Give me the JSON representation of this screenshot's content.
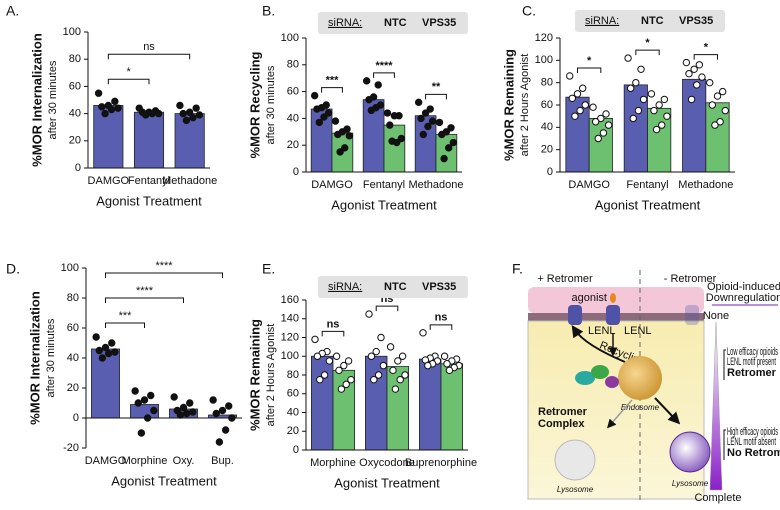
{
  "chart_data": [
    {
      "type": "bar",
      "panel": "A.",
      "y_label": "%MOR Internalization",
      "y_sublabel": "after 30 minutes",
      "x_label": "Agonist Treatment",
      "categories": [
        "DAMGO",
        "Fentanyl",
        "Methadone"
      ],
      "series": [
        {
          "color": "#5a5eb0",
          "values": [
            46,
            41,
            40
          ],
          "points": [
            [
              55,
              49,
              46,
              45,
              44,
              43,
              40
            ],
            [
              44,
              42,
              41,
              41,
              40,
              40,
              39
            ],
            [
              46,
              44,
              41,
              40,
              39,
              37,
              35
            ]
          ]
        }
      ],
      "point_style": "filled",
      "ylim": [
        0,
        100
      ],
      "yticks": [
        0,
        20,
        40,
        60,
        80,
        100
      ],
      "significance": [
        {
          "label": "*",
          "between": [
            "DAMGO",
            "Fentanyl"
          ]
        },
        {
          "label": "ns",
          "between": [
            "DAMGO",
            "Methadone"
          ]
        }
      ]
    },
    {
      "type": "bar",
      "panel": "B.",
      "y_label": "%MOR Recycling",
      "y_sublabel": "after 30 minutes",
      "x_label": "Agonist Treatment",
      "legend_title": "siRNA:",
      "categories": [
        "DAMGO",
        "Fentanyl",
        "Methadone"
      ],
      "series": [
        {
          "name": "NTC",
          "color": "#5a5eb0",
          "values": [
            47,
            54,
            42
          ],
          "points": [
            [
              57,
              50,
              48,
              47,
              44,
              41,
              37
            ],
            [
              68,
              65,
              56,
              54,
              50,
              48,
              46
            ],
            [
              52,
              47,
              44,
              40,
              38,
              34,
              28
            ]
          ]
        },
        {
          "name": "VPS35",
          "color": "#6cc070",
          "values": [
            29,
            35,
            28
          ],
          "points": [
            [
              38,
              32,
              30,
              28,
              27,
              18,
              15
            ],
            [
              44,
              42,
              42,
              35,
              25,
              22,
              23
            ],
            [
              37,
              33,
              30,
              28,
              22,
              18,
              10
            ]
          ]
        }
      ],
      "point_style": "filled",
      "ylim": [
        0,
        100
      ],
      "yticks": [
        0,
        20,
        40,
        60,
        80,
        100
      ],
      "significance": [
        "***",
        "****",
        "**"
      ]
    },
    {
      "type": "bar",
      "panel": "C.",
      "y_label": "%MOR Remaining",
      "y_sublabel": "after 2 Hours Agonist",
      "x_label": "Agonist Treatment",
      "legend_title": "siRNA:",
      "categories": [
        "DAMGO",
        "Fentanyl",
        "Methadone"
      ],
      "series": [
        {
          "name": "NTC",
          "color": "#5a5eb0",
          "values": [
            67,
            78,
            83
          ],
          "points": [
            [
              86,
              75,
              70,
              66,
              60,
              55,
              50
            ],
            [
              102,
              92,
              80,
              75,
              65,
              55,
              48
            ],
            [
              98,
              96,
              92,
              88,
              85,
              78,
              65
            ]
          ]
        },
        {
          "name": "VPS35",
          "color": "#6cc070",
          "values": [
            48,
            57,
            62
          ],
          "points": [
            [
              58,
              52,
              48,
              45,
              42,
              35,
              30
            ],
            [
              70,
              65,
              60,
              55,
              50,
              42,
              38
            ],
            [
              80,
              72,
              68,
              60,
              55,
              45,
              42
            ]
          ]
        }
      ],
      "point_style": "open",
      "ylim": [
        0,
        120
      ],
      "yticks": [
        0,
        20,
        40,
        60,
        80,
        100,
        120
      ],
      "significance": [
        "*",
        "*",
        "*"
      ]
    },
    {
      "type": "bar",
      "panel": "D.",
      "y_label": "%MOR Internalization",
      "y_sublabel": "after 30 minutes",
      "x_label": "Agonist Treatment",
      "categories": [
        "DAMGO",
        "Morphine",
        "Oxy.",
        "Bup."
      ],
      "series": [
        {
          "color": "#5a5eb0",
          "values": [
            46,
            9,
            6,
            2
          ],
          "points": [
            [
              54,
              50,
              47,
              45,
              44,
              43,
              40
            ],
            [
              18,
              15,
              12,
              10,
              5,
              0,
              -10
            ],
            [
              14,
              10,
              7,
              5,
              4,
              3,
              2
            ],
            [
              12,
              8,
              5,
              3,
              0,
              -8,
              -16
            ]
          ]
        }
      ],
      "point_style": "filled",
      "ylim": [
        -20,
        100
      ],
      "yticks": [
        -20,
        0,
        20,
        40,
        60,
        80,
        100
      ],
      "significance": [
        {
          "label": "***",
          "between": [
            "DAMGO",
            "Morphine"
          ]
        },
        {
          "label": "****",
          "between": [
            "DAMGO",
            "Oxy."
          ]
        },
        {
          "label": "****",
          "between": [
            "DAMGO",
            "Bup."
          ]
        }
      ]
    },
    {
      "type": "bar",
      "panel": "E.",
      "y_label": "%MOR Remaining",
      "y_sublabel": "after 2 Hours Agonist",
      "x_label": "Agonist Treatment",
      "legend_title": "siRNA:",
      "categories": [
        "Morphine",
        "Oxycodone",
        "Buprenorphine"
      ],
      "series": [
        {
          "name": "NTC",
          "color": "#5a5eb0",
          "values": [
            100,
            100,
            97
          ],
          "points": [
            [
              118,
              105,
              103,
              100,
              95,
              80,
              75
            ],
            [
              145,
              120,
              105,
              100,
              90,
              80,
              75
            ],
            [
              125,
              100,
              98,
              96,
              95,
              92,
              90
            ]
          ]
        },
        {
          "name": "VPS35",
          "color": "#6cc070",
          "values": [
            85,
            89,
            92
          ],
          "points": [
            [
              100,
              95,
              90,
              85,
              75,
              70,
              65
            ],
            [
              110,
              100,
              95,
              85,
              80,
              75,
              65
            ],
            [
              100,
              97,
              95,
              92,
              90,
              88,
              85
            ]
          ]
        }
      ],
      "point_style": "open",
      "ylim": [
        0,
        160
      ],
      "yticks": [
        0,
        20,
        40,
        60,
        80,
        100,
        120,
        140,
        160
      ],
      "significance": [
        "ns",
        "ns",
        "ns"
      ]
    }
  ],
  "diagram": {
    "panel": "F.",
    "left": "+ Retromer",
    "right": "- Retromer",
    "agonist": "agonist",
    "motif_left": "LENL",
    "motif_right": "LENL",
    "recycling": "Recycling",
    "endosome": "Endosome",
    "complex": [
      "Retromer",
      "Complex"
    ],
    "lysosome_left": "Lysosome",
    "lysosome_right": "Lysosome",
    "scale_title": [
      "Opioid-induced",
      "Downregulation"
    ],
    "scale_top": "None",
    "scale_bottom": "Complete",
    "low": [
      "Low efficacy opioids",
      "LENL motif present",
      "Retromer"
    ],
    "high": [
      "High efficacy opioids",
      "LENL motif absent",
      "No Retromer"
    ]
  }
}
